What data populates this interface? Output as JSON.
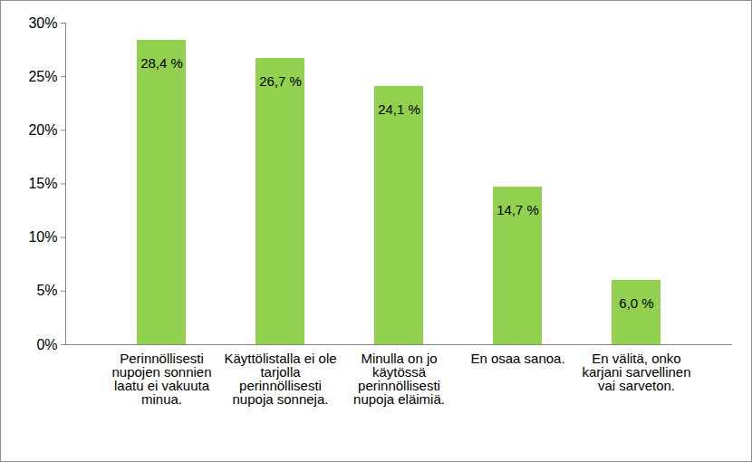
{
  "chart_data": {
    "type": "bar",
    "categories": [
      "Perinnöllisesti nupojen sonnien laatu ei vakuuta minua.",
      "Käyttölistalla ei ole tarjolla perinnöllisesti nupoja sonneja.",
      "Minulla on jo käytössä perinnöllisesti nupoja eläimiä.",
      "En osaa sanoa.",
      "En välitä, onko karjani sarvellinen vai sarveton."
    ],
    "values": [
      28.4,
      26.7,
      24.1,
      14.7,
      6.0
    ],
    "value_labels": [
      "28,4 %",
      "26,7 %",
      "24,1 %",
      "14,7 %",
      "6,0 %"
    ],
    "data_labels": true,
    "color": "#92d050",
    "ylim": [
      0,
      30
    ],
    "yticks": [
      {
        "value": 0,
        "label": "0%"
      },
      {
        "value": 5,
        "label": "5%"
      },
      {
        "value": 10,
        "label": "10%"
      },
      {
        "value": 15,
        "label": "15%"
      },
      {
        "value": 20,
        "label": "20%"
      },
      {
        "value": 25,
        "label": "25%"
      },
      {
        "value": 30,
        "label": "30%"
      }
    ],
    "grid": false
  }
}
